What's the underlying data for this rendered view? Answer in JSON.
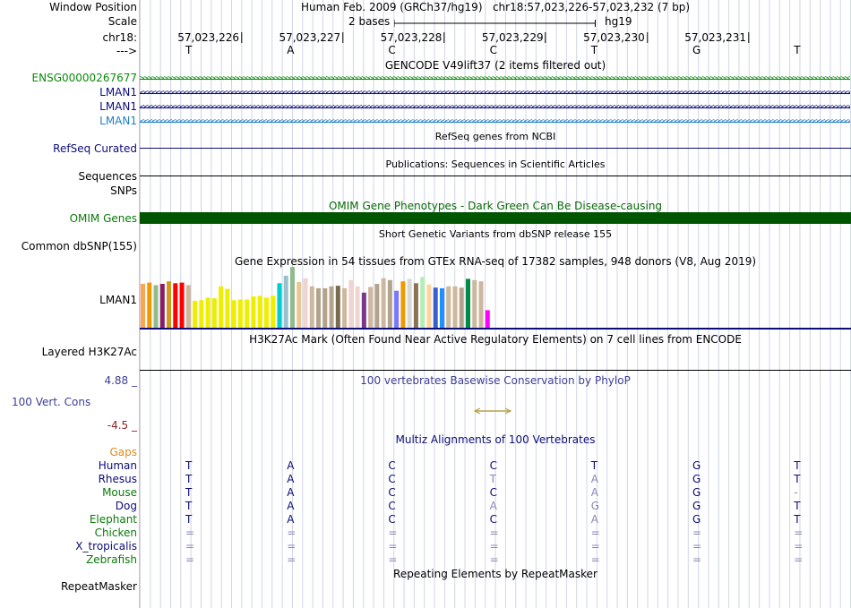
{
  "header": {
    "window_position_label": "Window Position",
    "window_position_value": "Human Feb. 2009 (GRCh37/hg19)   chr18:57,023,226-57,023,232 (7 bp)",
    "scale_label": "Scale",
    "scale_value": "2 bases",
    "scale_assembly": "hg19",
    "chrom_label": "chr18:",
    "strand_label": "--->",
    "positions": [
      "57,023,226",
      "57,023,227",
      "57,023,228",
      "57,023,229",
      "57,023,230",
      "57,023,231"
    ],
    "bases": [
      "T",
      "A",
      "C",
      "C",
      "T",
      "G",
      "T"
    ]
  },
  "gencode": {
    "title": "GENCODE V49lift37 (2 items filtered out)",
    "tracks": [
      {
        "name": "ENSG00000267677",
        "direction": "forward",
        "color": "#0a8a0a"
      },
      {
        "name": "LMAN1",
        "direction": "reverse",
        "color": "#0c0c78"
      },
      {
        "name": "LMAN1",
        "direction": "reverse",
        "color": "#0c0c78"
      },
      {
        "name": "LMAN1",
        "direction": "reverse",
        "color": "#1f7fbf"
      }
    ]
  },
  "refseq": {
    "title": "RefSeq genes from NCBI",
    "label": "RefSeq Curated"
  },
  "publications": {
    "title": "Publications: Sequences in Scientific Articles",
    "label1": "Sequences",
    "label2": "SNPs"
  },
  "omim": {
    "title": "OMIM Gene Phenotypes - Dark Green Can Be Disease-causing",
    "label": "OMIM Genes"
  },
  "dbsnp": {
    "title": "Short Genetic Variants from dbSNP release 155",
    "label": "Common dbSNP(155)"
  },
  "gtex": {
    "title": "Gene Expression in 54 tissues from GTEx RNA-seq of 17382 samples, 948 donors (V8, Aug 2019)",
    "label": "LMAN1",
    "bars": [
      {
        "v": 0.7,
        "c": "#ffa54f"
      },
      {
        "v": 0.72,
        "c": "#ee9a00"
      },
      {
        "v": 0.68,
        "c": "#8fbc8f"
      },
      {
        "v": 0.7,
        "c": "#8b1c62"
      },
      {
        "v": 0.74,
        "c": "#cd9b1d"
      },
      {
        "v": 0.71,
        "c": "#ff0000"
      },
      {
        "v": 0.72,
        "c": "#ff0000"
      },
      {
        "v": 0.68,
        "c": "#cdb79e"
      },
      {
        "v": 0.43,
        "c": "#eeee00"
      },
      {
        "v": 0.44,
        "c": "#eeee00"
      },
      {
        "v": 0.48,
        "c": "#eeee00"
      },
      {
        "v": 0.47,
        "c": "#eeee00"
      },
      {
        "v": 0.66,
        "c": "#eeee00"
      },
      {
        "v": 0.62,
        "c": "#eeee00"
      },
      {
        "v": 0.44,
        "c": "#eeee00"
      },
      {
        "v": 0.45,
        "c": "#eeee00"
      },
      {
        "v": 0.45,
        "c": "#eeee00"
      },
      {
        "v": 0.5,
        "c": "#eeee00"
      },
      {
        "v": 0.51,
        "c": "#eeee00"
      },
      {
        "v": 0.48,
        "c": "#eeee00"
      },
      {
        "v": 0.51,
        "c": "#eeee00"
      },
      {
        "v": 0.71,
        "c": "#00cdcd"
      },
      {
        "v": 0.83,
        "c": "#9ac0cd"
      },
      {
        "v": 0.97,
        "c": "#8fbc8f"
      },
      {
        "v": 0.73,
        "c": "#eec591"
      },
      {
        "v": 0.79,
        "c": "#eed5d2"
      },
      {
        "v": 0.66,
        "c": "#cdb79e"
      },
      {
        "v": 0.63,
        "c": "#b4a38c"
      },
      {
        "v": 0.63,
        "c": "#b4a38c"
      },
      {
        "v": 0.66,
        "c": "#b4a38c"
      },
      {
        "v": 0.67,
        "c": "#7a6a4e"
      },
      {
        "v": 0.63,
        "c": "#cdb79e"
      },
      {
        "v": 0.76,
        "c": "#eed5d2"
      },
      {
        "v": 0.66,
        "c": "#eed5d2"
      },
      {
        "v": 0.56,
        "c": "#7a378b"
      },
      {
        "v": 0.65,
        "c": "#cdb79e"
      },
      {
        "v": 0.7,
        "c": "#b4a38c"
      },
      {
        "v": 0.79,
        "c": "#cdb79e"
      },
      {
        "v": 0.76,
        "c": "#b4a38c"
      },
      {
        "v": 0.59,
        "c": "#7777ff"
      },
      {
        "v": 0.74,
        "c": "#ee9a00"
      },
      {
        "v": 0.78,
        "c": "#d9d9d9"
      },
      {
        "v": 0.71,
        "c": "#8b7355"
      },
      {
        "v": 0.81,
        "c": "#b4eeb4"
      },
      {
        "v": 0.69,
        "c": "#ffd39b"
      },
      {
        "v": 0.64,
        "c": "#3a5fcd"
      },
      {
        "v": 0.63,
        "c": "#1e90ff"
      },
      {
        "v": 0.66,
        "c": "#cdb79e"
      },
      {
        "v": 0.66,
        "c": "#cdb79e"
      },
      {
        "v": 0.64,
        "c": "#b4a38c"
      },
      {
        "v": 0.78,
        "c": "#008b45"
      },
      {
        "v": 0.76,
        "c": "#cdb79e"
      },
      {
        "v": 0.74,
        "c": "#cdb79e"
      },
      {
        "v": 0.28,
        "c": "#ff00ff"
      }
    ]
  },
  "h3k27ac": {
    "title": "H3K27Ac Mark (Often Found Near Active Regulatory Elements) on 7 cell lines from ENCODE",
    "label": "Layered H3K27Ac"
  },
  "phylop": {
    "title": "100 vertebrates Basewise Conservation by PhyloP",
    "label": "100 Vert. Cons",
    "ymax": "4.88 _",
    "ymin": "-4.5 _"
  },
  "multiz": {
    "title": "Multiz Alignments of 100 Vertebrates",
    "gaps_label": "Gaps",
    "species": [
      {
        "name": "Human",
        "name_color": "#0c0c78",
        "bases": [
          [
            "T",
            "#0c0c78"
          ],
          [
            "A",
            "#0c0c78"
          ],
          [
            "C",
            "#0c0c78"
          ],
          [
            "C",
            "#0c0c78"
          ],
          [
            "T",
            "#0c0c78"
          ],
          [
            "G",
            "#0c0c78"
          ],
          [
            "T",
            "#0c0c78"
          ]
        ]
      },
      {
        "name": "Rhesus",
        "name_color": "#0c0c78",
        "bases": [
          [
            "T",
            "#0c0c78"
          ],
          [
            "A",
            "#0c0c78"
          ],
          [
            "C",
            "#0c0c78"
          ],
          [
            "T",
            "#8888b8"
          ],
          [
            "A",
            "#8888b8"
          ],
          [
            "G",
            "#0c0c78"
          ],
          [
            "T",
            "#0c0c78"
          ]
        ]
      },
      {
        "name": "Mouse",
        "name_color": "#0a7a0a",
        "bases": [
          [
            "T",
            "#0c0c78"
          ],
          [
            "A",
            "#0c0c78"
          ],
          [
            "C",
            "#0c0c78"
          ],
          [
            "C",
            "#0c0c78"
          ],
          [
            "A",
            "#8888b8"
          ],
          [
            "G",
            "#0c0c78"
          ],
          [
            "-",
            "#8888b8"
          ]
        ]
      },
      {
        "name": "Dog",
        "name_color": "#0c0c78",
        "bases": [
          [
            "T",
            "#0c0c78"
          ],
          [
            "A",
            "#0c0c78"
          ],
          [
            "C",
            "#0c0c78"
          ],
          [
            "A",
            "#8888b8"
          ],
          [
            "G",
            "#8888b8"
          ],
          [
            "G",
            "#0c0c78"
          ],
          [
            "T",
            "#0c0c78"
          ]
        ]
      },
      {
        "name": "Elephant",
        "name_color": "#0a7a0a",
        "bases": [
          [
            "T",
            "#0c0c78"
          ],
          [
            "A",
            "#0c0c78"
          ],
          [
            "C",
            "#0c0c78"
          ],
          [
            "C",
            "#0c0c78"
          ],
          [
            "A",
            "#8888b8"
          ],
          [
            "G",
            "#0c0c78"
          ],
          [
            "T",
            "#0c0c78"
          ]
        ]
      },
      {
        "name": "Chicken",
        "name_color": "#0a7a0a",
        "bases": [
          [
            "=",
            "#8888b8"
          ],
          [
            "=",
            "#8888b8"
          ],
          [
            "=",
            "#8888b8"
          ],
          [
            "=",
            "#8888b8"
          ],
          [
            "=",
            "#8888b8"
          ],
          [
            "=",
            "#8888b8"
          ],
          [
            "=",
            "#8888b8"
          ]
        ]
      },
      {
        "name": "X_tropicalis",
        "name_color": "#0c0c78",
        "bases": [
          [
            "=",
            "#8888b8"
          ],
          [
            "=",
            "#8888b8"
          ],
          [
            "=",
            "#8888b8"
          ],
          [
            "=",
            "#8888b8"
          ],
          [
            "=",
            "#8888b8"
          ],
          [
            "=",
            "#8888b8"
          ],
          [
            "=",
            "#8888b8"
          ]
        ]
      },
      {
        "name": "Zebrafish",
        "name_color": "#0a7a0a",
        "bases": [
          [
            "=",
            "#8888b8"
          ],
          [
            "=",
            "#8888b8"
          ],
          [
            "=",
            "#8888b8"
          ],
          [
            "=",
            "#8888b8"
          ],
          [
            "=",
            "#8888b8"
          ],
          [
            "=",
            "#8888b8"
          ],
          [
            "=",
            "#8888b8"
          ]
        ]
      }
    ]
  },
  "repeatmasker": {
    "title": "Repeating Elements by RepeatMasker",
    "label": "RepeatMasker"
  },
  "colors": {
    "omim_bar": "#005500",
    "navy": "#0c0c78",
    "grid": "#cfd6e6",
    "sidebar_line": "#ff9999"
  }
}
